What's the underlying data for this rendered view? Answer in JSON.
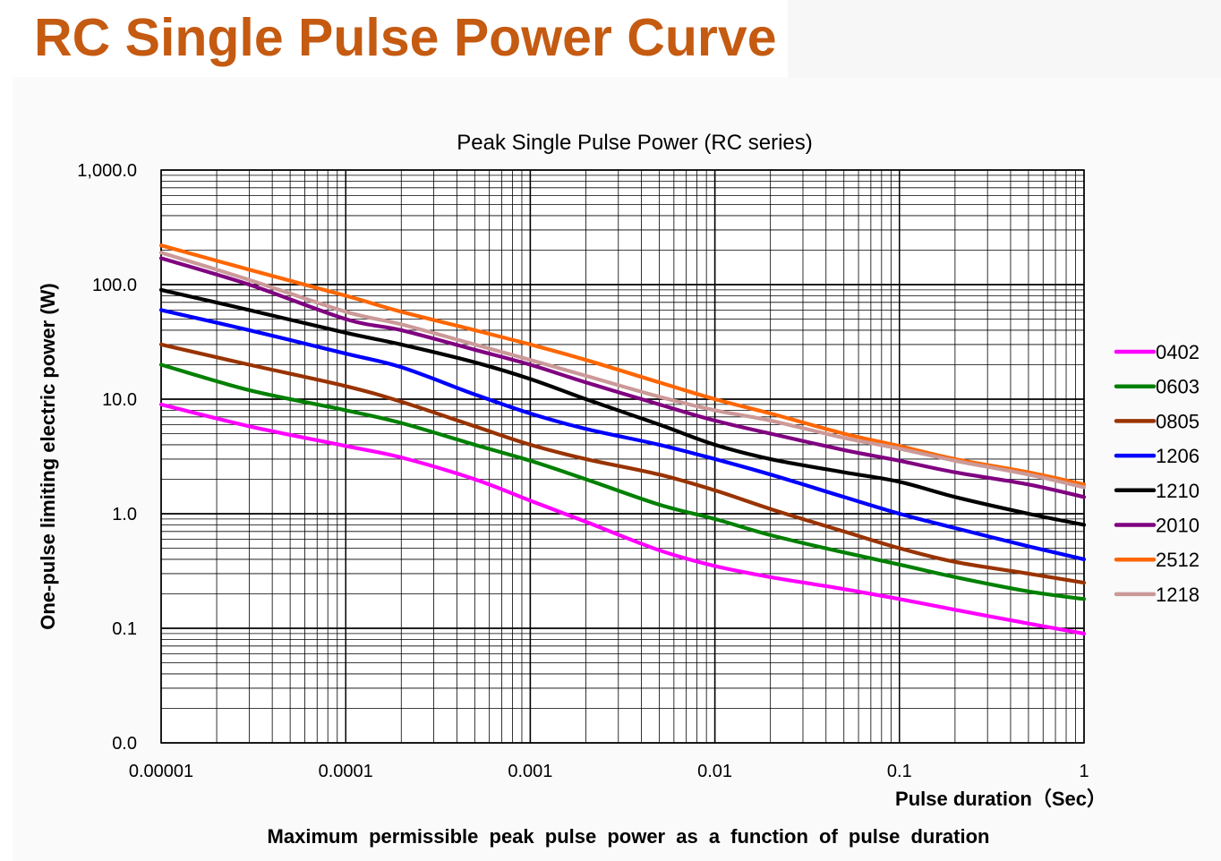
{
  "slide": {
    "title": "RC Single Pulse Power Curve",
    "title_color": "#c55a11"
  },
  "chart_data": {
    "type": "line",
    "title": "Peak Single Pulse Power (RC series)",
    "xlabel": "Pulse duration（Sec）",
    "ylabel": "One-pulse limiting electric power (W)",
    "caption": "Maximum permissible peak pulse power as a function of pulse duration",
    "x_scale": "log",
    "y_scale": "log",
    "xlim": [
      1e-05,
      1
    ],
    "ylim": [
      0.01,
      1000
    ],
    "x_ticks": [
      {
        "value": 1e-05,
        "label": "0.00001"
      },
      {
        "value": 0.0001,
        "label": "0.0001"
      },
      {
        "value": 0.001,
        "label": "0.001"
      },
      {
        "value": 0.01,
        "label": "0.01"
      },
      {
        "value": 0.1,
        "label": "0.1"
      },
      {
        "value": 1,
        "label": "1"
      }
    ],
    "y_ticks": [
      {
        "value": 1000,
        "label": "1,000.0"
      },
      {
        "value": 100,
        "label": "100.0"
      },
      {
        "value": 10,
        "label": "10.0"
      },
      {
        "value": 1,
        "label": "1.0"
      },
      {
        "value": 0.1,
        "label": "0.1"
      },
      {
        "value": 0.01,
        "label": "0.0"
      }
    ],
    "grid": true,
    "legend_position": "right",
    "series": [
      {
        "name": "0402",
        "color": "#ff00ff",
        "x": [
          1e-05,
          3e-05,
          0.0001,
          0.0002,
          0.0005,
          0.001,
          0.002,
          0.005,
          0.01,
          0.02,
          0.05,
          0.1,
          0.2,
          0.5,
          1
        ],
        "y": [
          9,
          5.8,
          3.9,
          3.1,
          2.0,
          1.3,
          0.85,
          0.48,
          0.35,
          0.28,
          0.22,
          0.18,
          0.145,
          0.11,
          0.09
        ]
      },
      {
        "name": "0603",
        "color": "#008000",
        "x": [
          1e-05,
          3e-05,
          0.0001,
          0.0002,
          0.0005,
          0.001,
          0.002,
          0.005,
          0.01,
          0.02,
          0.05,
          0.1,
          0.2,
          0.5,
          1
        ],
        "y": [
          20,
          12,
          8,
          6.2,
          4.0,
          2.9,
          2.0,
          1.2,
          0.9,
          0.65,
          0.46,
          0.36,
          0.28,
          0.21,
          0.18
        ]
      },
      {
        "name": "0805",
        "color": "#993300",
        "x": [
          1e-05,
          3e-05,
          0.0001,
          0.0002,
          0.0005,
          0.001,
          0.002,
          0.005,
          0.01,
          0.02,
          0.05,
          0.1,
          0.2,
          0.5,
          1
        ],
        "y": [
          30,
          20,
          13,
          9.5,
          5.8,
          4.0,
          3.0,
          2.2,
          1.6,
          1.1,
          0.7,
          0.5,
          0.38,
          0.3,
          0.25
        ]
      },
      {
        "name": "1206",
        "color": "#0000ff",
        "x": [
          1e-05,
          3e-05,
          0.0001,
          0.0002,
          0.0005,
          0.001,
          0.002,
          0.005,
          0.01,
          0.02,
          0.05,
          0.1,
          0.2,
          0.5,
          1
        ],
        "y": [
          60,
          40,
          25,
          19,
          11,
          7.5,
          5.5,
          4.0,
          3.0,
          2.2,
          1.4,
          1.0,
          0.75,
          0.52,
          0.4
        ]
      },
      {
        "name": "1210",
        "color": "#000000",
        "x": [
          1e-05,
          3e-05,
          0.0001,
          0.0002,
          0.0005,
          0.001,
          0.002,
          0.005,
          0.01,
          0.02,
          0.05,
          0.1,
          0.2,
          0.5,
          1
        ],
        "y": [
          90,
          60,
          38,
          30,
          21,
          15,
          10,
          6.0,
          4.0,
          3.0,
          2.3,
          1.9,
          1.4,
          1.0,
          0.8
        ]
      },
      {
        "name": "2010",
        "color": "#800080",
        "x": [
          1e-05,
          3e-05,
          0.0001,
          0.0002,
          0.0005,
          0.001,
          0.002,
          0.005,
          0.01,
          0.02,
          0.05,
          0.1,
          0.2,
          0.5,
          1
        ],
        "y": [
          170,
          100,
          50,
          40,
          27,
          20,
          14,
          9.0,
          6.5,
          5.0,
          3.6,
          2.9,
          2.3,
          1.8,
          1.4
        ]
      },
      {
        "name": "2512",
        "color": "#ff6600",
        "x": [
          1e-05,
          3e-05,
          0.0001,
          0.0002,
          0.0005,
          0.001,
          0.002,
          0.005,
          0.01,
          0.02,
          0.05,
          0.1,
          0.2,
          0.5,
          1
        ],
        "y": [
          220,
          135,
          80,
          58,
          40,
          30,
          22,
          14,
          10,
          7.5,
          5.0,
          3.9,
          3.0,
          2.3,
          1.8
        ]
      },
      {
        "name": "1218",
        "color": "#cc9999",
        "x": [
          1e-05,
          3e-05,
          0.0001,
          0.0002,
          0.0005,
          0.001,
          0.002,
          0.005,
          0.01,
          0.02,
          0.05,
          0.1,
          0.2,
          0.5,
          1
        ],
        "y": [
          190,
          110,
          58,
          45,
          30,
          22,
          16,
          10.5,
          8.0,
          6.5,
          4.6,
          3.7,
          2.9,
          2.2,
          1.7
        ]
      }
    ]
  }
}
